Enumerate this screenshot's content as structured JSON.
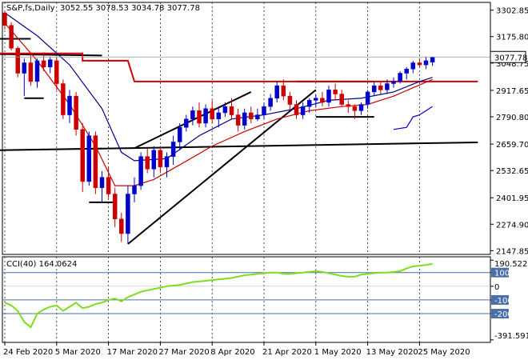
{
  "header": {
    "symbol": "S&P,fs,Daily",
    "ohlc": "3052.55 3078.53 3034.78 3077.78"
  },
  "indicator": {
    "label": "CCI(40) 164.0624"
  },
  "chart_data": [
    {
      "type": "candlestick",
      "title": "S&P,fs,Daily",
      "y_ticks": [
        3302.85,
        3175.8,
        3048.75,
        2917.65,
        2790.8,
        2659.7,
        2532.65,
        2401.95,
        2274.9,
        2147.85
      ],
      "last_price": "3077.78",
      "x_ticks": [
        {
          "label": "24 Feb 2020",
          "index": 0
        },
        {
          "label": "5 Mar 2020",
          "index": 8
        },
        {
          "label": "17 Mar 2020",
          "index": 16
        },
        {
          "label": "27 Mar 2020",
          "index": 24
        },
        {
          "label": "8 Apr 2020",
          "index": 32
        },
        {
          "label": "21 Apr 2020",
          "index": 40
        },
        {
          "label": "1 May 2020",
          "index": 48
        },
        {
          "label": "13 May 2020",
          "index": 56
        },
        {
          "label": "25 May 2020",
          "index": 64
        }
      ],
      "ylim": [
        2130,
        3340
      ],
      "candles": [
        [
          3290,
          3300,
          3210,
          3230
        ],
        [
          3230,
          3245,
          3110,
          3120
        ],
        [
          3120,
          3130,
          2980,
          3000
        ],
        [
          3000,
          3070,
          2890,
          3050
        ],
        [
          3050,
          3100,
          2940,
          2960
        ],
        [
          2960,
          3070,
          2930,
          3060
        ],
        [
          3060,
          3100,
          3010,
          3030
        ],
        [
          3030,
          3080,
          3000,
          3065
        ],
        [
          3060,
          3080,
          2920,
          2950
        ],
        [
          2950,
          2970,
          2780,
          2800
        ],
        [
          2800,
          2920,
          2760,
          2890
        ],
        [
          2890,
          2910,
          2700,
          2730
        ],
        [
          2730,
          2760,
          2430,
          2480
        ],
        [
          2480,
          2720,
          2460,
          2700
        ],
        [
          2700,
          2720,
          2420,
          2450
        ],
        [
          2450,
          2530,
          2380,
          2500
        ],
        [
          2500,
          2550,
          2400,
          2420
        ],
        [
          2420,
          2450,
          2260,
          2300
        ],
        [
          2300,
          2330,
          2190,
          2230
        ],
        [
          2230,
          2460,
          2180,
          2420
        ],
        [
          2420,
          2500,
          2380,
          2460
        ],
        [
          2460,
          2620,
          2440,
          2600
        ],
        [
          2600,
          2640,
          2520,
          2540
        ],
        [
          2540,
          2650,
          2500,
          2630
        ],
        [
          2630,
          2650,
          2520,
          2550
        ],
        [
          2550,
          2620,
          2500,
          2600
        ],
        [
          2600,
          2700,
          2560,
          2670
        ],
        [
          2670,
          2760,
          2630,
          2740
        ],
        [
          2740,
          2800,
          2720,
          2780
        ],
        [
          2780,
          2840,
          2750,
          2820
        ],
        [
          2820,
          2860,
          2740,
          2760
        ],
        [
          2760,
          2850,
          2740,
          2830
        ],
        [
          2830,
          2870,
          2760,
          2780
        ],
        [
          2780,
          2840,
          2740,
          2810
        ],
        [
          2810,
          2860,
          2790,
          2840
        ],
        [
          2840,
          2880,
          2780,
          2800
        ],
        [
          2800,
          2830,
          2720,
          2750
        ],
        [
          2750,
          2830,
          2730,
          2810
        ],
        [
          2810,
          2840,
          2760,
          2780
        ],
        [
          2780,
          2830,
          2770,
          2800
        ],
        [
          2800,
          2860,
          2780,
          2840
        ],
        [
          2840,
          2900,
          2820,
          2880
        ],
        [
          2880,
          2960,
          2860,
          2940
        ],
        [
          2940,
          2970,
          2870,
          2890
        ],
        [
          2890,
          2910,
          2820,
          2850
        ],
        [
          2850,
          2870,
          2780,
          2800
        ],
        [
          2800,
          2860,
          2780,
          2840
        ],
        [
          2840,
          2880,
          2810,
          2870
        ],
        [
          2870,
          2900,
          2840,
          2880
        ],
        [
          2880,
          2910,
          2840,
          2860
        ],
        [
          2860,
          2940,
          2840,
          2920
        ],
        [
          2920,
          2950,
          2870,
          2900
        ],
        [
          2900,
          2920,
          2840,
          2850
        ],
        [
          2850,
          2870,
          2810,
          2840
        ],
        [
          2840,
          2850,
          2780,
          2820
        ],
        [
          2820,
          2860,
          2800,
          2850
        ],
        [
          2850,
          2920,
          2830,
          2910
        ],
        [
          2910,
          2960,
          2890,
          2940
        ],
        [
          2940,
          2960,
          2900,
          2920
        ],
        [
          2920,
          2970,
          2900,
          2950
        ],
        [
          2950,
          2980,
          2930,
          2960
        ],
        [
          2960,
          3010,
          2950,
          3000
        ],
        [
          3000,
          3030,
          2970,
          3020
        ],
        [
          3020,
          3060,
          3000,
          3050
        ],
        [
          3050,
          3070,
          3030,
          3040
        ],
        [
          3040,
          3080,
          3020,
          3060
        ],
        [
          3052.55,
          3078.53,
          3034.78,
          3077.78
        ]
      ],
      "moving_averages": [
        {
          "color": "#00008b",
          "points": [
            [
              0,
              3290
            ],
            [
              5,
              3180
            ],
            [
              10,
              3040
            ],
            [
              15,
              2830
            ],
            [
              18,
              2620
            ],
            [
              20,
              2580
            ],
            [
              25,
              2590
            ],
            [
              30,
              2700
            ],
            [
              35,
              2780
            ],
            [
              40,
              2800
            ],
            [
              45,
              2830
            ],
            [
              50,
              2870
            ],
            [
              55,
              2880
            ],
            [
              60,
              2910
            ],
            [
              64,
              2960
            ],
            [
              66,
              2980
            ]
          ]
        },
        {
          "color": "#cc0000",
          "points": [
            [
              0,
              3240
            ],
            [
              5,
              3060
            ],
            [
              10,
              2850
            ],
            [
              14,
              2650
            ],
            [
              17,
              2460
            ],
            [
              20,
              2460
            ],
            [
              23,
              2490
            ],
            [
              27,
              2560
            ],
            [
              32,
              2650
            ],
            [
              37,
              2720
            ],
            [
              42,
              2780
            ],
            [
              47,
              2820
            ],
            [
              52,
              2840
            ],
            [
              56,
              2850
            ],
            [
              60,
              2890
            ],
            [
              63,
              2930
            ],
            [
              66,
              2970
            ]
          ]
        },
        {
          "color": "#0000cd",
          "points": [
            [
              60,
              2730
            ],
            [
              62,
              2740
            ],
            [
              63,
              2790
            ],
            [
              64,
              2800
            ],
            [
              66,
              2840
            ]
          ]
        }
      ]
    },
    {
      "type": "line",
      "title": "CCI(40) 164.0624",
      "y_ticks": [
        190.5221,
        100,
        0,
        -100,
        -200,
        -391.5917
      ],
      "ylim": [
        -410,
        215
      ],
      "values": [
        -120,
        -140,
        -180,
        -260,
        -300,
        -200,
        -170,
        -150,
        -140,
        -180,
        -150,
        -120,
        -160,
        -150,
        -130,
        -120,
        -100,
        -90,
        -110,
        -80,
        -60,
        -40,
        -30,
        -20,
        -10,
        0,
        5,
        10,
        20,
        30,
        35,
        40,
        45,
        50,
        55,
        60,
        70,
        80,
        85,
        90,
        95,
        100,
        100,
        90,
        90,
        95,
        100,
        105,
        110,
        105,
        95,
        85,
        75,
        70,
        70,
        85,
        90,
        95,
        100,
        100,
        105,
        110,
        130,
        145,
        150,
        155,
        164.0624
      ]
    }
  ]
}
